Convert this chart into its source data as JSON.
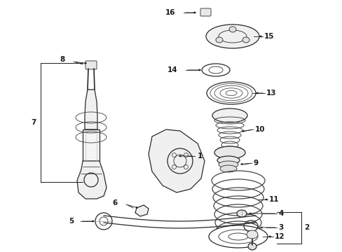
{
  "bg_color": "#ffffff",
  "fig_width": 4.89,
  "fig_height": 3.6,
  "dpi": 100,
  "line_color": "#2a2a2a",
  "text_color": "#1a1a1a",
  "label_fontsize": 7.5,
  "arrow_fontsize": 6.0
}
